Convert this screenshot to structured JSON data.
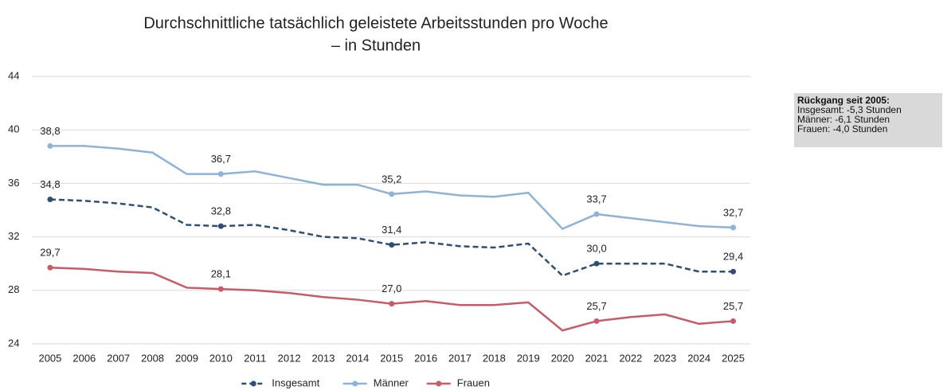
{
  "chart_data": {
    "type": "line",
    "title": [
      "Durchschnittliche tatsächlich geleistete Arbeitsstunden pro Woche",
      "– in Stunden"
    ],
    "categories": [
      "2005",
      "2006",
      "2007",
      "2008",
      "2009",
      "2010",
      "2011",
      "2012",
      "2013",
      "2014",
      "2015",
      "2016",
      "2017",
      "2018",
      "2019",
      "2020",
      "2021",
      "2022",
      "2023",
      "2024",
      "2025"
    ],
    "ylim": [
      24,
      44
    ],
    "yticks": [
      24,
      28,
      32,
      36,
      40,
      44
    ],
    "grid": true,
    "legend": "bottom",
    "series": [
      {
        "name": "Insgesamt",
        "color": "#2e4f75",
        "dash": true,
        "values": [
          34.8,
          34.7,
          34.5,
          34.2,
          32.9,
          32.8,
          32.9,
          32.5,
          32.0,
          31.9,
          31.4,
          31.6,
          31.3,
          31.2,
          31.5,
          29.1,
          30.0,
          30.0,
          30.0,
          29.4,
          29.4
        ],
        "value_labels": [
          "34,8",
          null,
          null,
          null,
          null,
          "32,8",
          null,
          null,
          null,
          null,
          "31,4",
          null,
          null,
          null,
          null,
          null,
          "30,0",
          null,
          null,
          null,
          "29,4"
        ]
      },
      {
        "name": "Männer",
        "color": "#8fb3d6",
        "dash": false,
        "values": [
          38.8,
          38.8,
          38.6,
          38.3,
          36.7,
          36.7,
          36.9,
          36.4,
          35.9,
          35.9,
          35.2,
          35.4,
          35.1,
          35.0,
          35.3,
          32.6,
          33.7,
          33.4,
          33.1,
          32.8,
          32.7
        ],
        "value_labels": [
          "38,8",
          null,
          null,
          null,
          null,
          "36,7",
          null,
          null,
          null,
          null,
          "35,2",
          null,
          null,
          null,
          null,
          null,
          "33,7",
          null,
          null,
          null,
          "32,7"
        ]
      },
      {
        "name": "Frauen",
        "color": "#c95a66",
        "dash": false,
        "values": [
          29.7,
          29.6,
          29.4,
          29.3,
          28.2,
          28.1,
          28.0,
          27.8,
          27.5,
          27.3,
          27.0,
          27.2,
          26.9,
          26.9,
          27.1,
          25.0,
          25.7,
          26.0,
          26.2,
          25.5,
          25.7
        ],
        "value_labels": [
          "29,7",
          null,
          null,
          null,
          null,
          "28,1",
          null,
          null,
          null,
          null,
          "27,0",
          null,
          null,
          null,
          null,
          null,
          "25,7",
          null,
          null,
          null,
          "25,7"
        ]
      }
    ],
    "annotation": {
      "title": "Rückgang seit 2005:",
      "lines": [
        "Insgesamt: -5,3 Stunden",
        "Männer: -6,1 Stunden",
        "Frauen: -4,0 Stunden"
      ]
    }
  }
}
